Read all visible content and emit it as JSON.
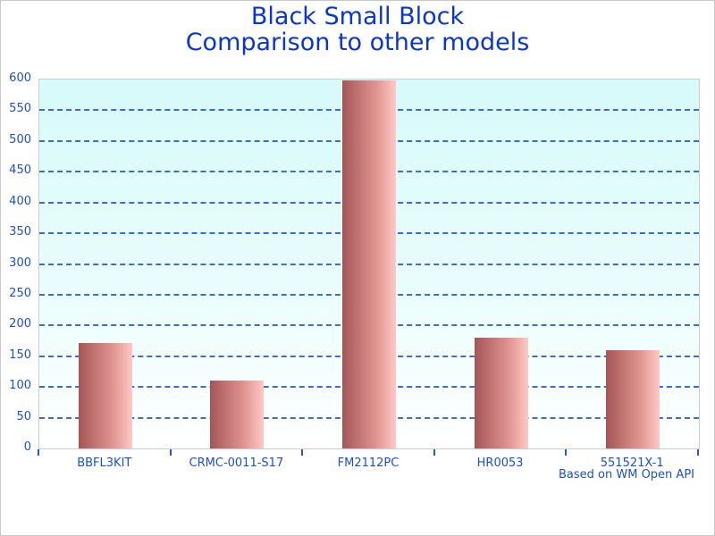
{
  "title": {
    "line1": "Black Small Block",
    "line2": "Comparison to other models"
  },
  "footer": {
    "text": "Based on WM Open API"
  },
  "chart_data": {
    "type": "bar",
    "title": "Black Small Block",
    "subtitle": "Comparison to other models",
    "categories": [
      "BBFL3KIT",
      "CRMC-0011-S17",
      "FM2112PC",
      "HR0053",
      "551521X-1"
    ],
    "values": [
      172,
      110,
      598,
      180,
      160
    ],
    "xlabel": "",
    "ylabel": "",
    "ylim": [
      0,
      600
    ],
    "ytick_step": 50,
    "ytick_labels": [
      "0",
      "50",
      "100",
      "150",
      "200",
      "250",
      "300",
      "350",
      "400",
      "450",
      "500",
      "550",
      "600"
    ],
    "grid": "horizontal-dashed",
    "legend": "none",
    "annotation": "Based on WM Open API",
    "colors": {
      "title_text": "#0a36cf",
      "axis_label_text": "#1e4fc4",
      "gridline": "#3565c6",
      "tick_mark": "#2a5ac0",
      "plot_background_top": "#d7fafa",
      "plot_background_mid": "#e9fdfd",
      "plot_background_bottom": "#ffffff",
      "plot_border": "#c9ced3",
      "frame_border": "#c8c8c8",
      "page_background": "#ffffff",
      "bar_gradient_left": "#a45656",
      "bar_gradient_mid": "#e29692",
      "bar_gradient_right": "#fec9c6"
    }
  }
}
